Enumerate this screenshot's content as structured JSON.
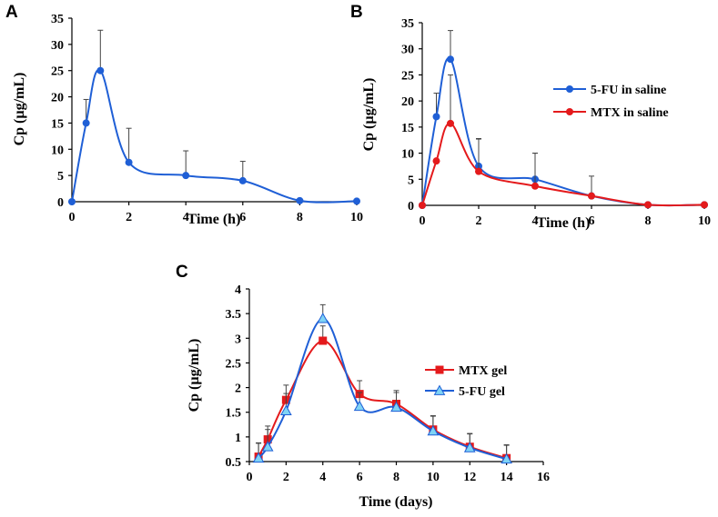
{
  "chart_data": [
    {
      "panel": "A",
      "type": "line",
      "xlabel": "Time (h)",
      "ylabel": "Cp (µg/mL)",
      "xlim": [
        0,
        10
      ],
      "ylim": [
        0,
        35
      ],
      "xticks": [
        0,
        2,
        4,
        6,
        8,
        10
      ],
      "yticks": [
        0,
        5,
        10,
        15,
        20,
        25,
        30,
        35
      ],
      "series": [
        {
          "name": "5-FU",
          "color": "#1f5fd6",
          "marker": "circle",
          "x": [
            0,
            0.5,
            1,
            2,
            4,
            6,
            8,
            10
          ],
          "y": [
            0,
            15,
            25,
            7.5,
            5,
            4,
            0.2,
            0.1
          ],
          "err": [
            0,
            4.5,
            7.7,
            6.5,
            4.7,
            3.7,
            0,
            0
          ]
        }
      ]
    },
    {
      "panel": "B",
      "type": "line",
      "xlabel": "Time (h)",
      "ylabel": "Cp (µg/mL)",
      "xlim": [
        0,
        10
      ],
      "ylim": [
        0,
        35
      ],
      "xticks": [
        0,
        2,
        4,
        6,
        8,
        10
      ],
      "yticks": [
        0,
        5,
        10,
        15,
        20,
        25,
        30,
        35
      ],
      "legend": [
        "5-FU in saline",
        "MTX in saline"
      ],
      "series": [
        {
          "name": "5-FU in saline",
          "color": "#1f5fd6",
          "marker": "circle",
          "x": [
            0,
            0.5,
            1,
            2,
            4,
            6,
            8,
            10
          ],
          "y": [
            0,
            17,
            28,
            7.5,
            5,
            1.8,
            0.1,
            0.1
          ],
          "err": [
            0,
            4.5,
            5.5,
            5.3,
            5,
            3.8,
            0,
            0
          ]
        },
        {
          "name": "MTX in saline",
          "color": "#e41a1c",
          "marker": "circle",
          "x": [
            0,
            0.5,
            1,
            2,
            4,
            6,
            8,
            10
          ],
          "y": [
            0,
            8.5,
            15.7,
            6.5,
            3.7,
            1.8,
            0.1,
            0.1
          ],
          "err": [
            0,
            0,
            9.3,
            6.2,
            6.3,
            0,
            0,
            0
          ]
        }
      ]
    },
    {
      "panel": "C",
      "type": "line",
      "xlabel": "Time (days)",
      "ylabel": "Cp (µg/mL)",
      "xlim": [
        0,
        16
      ],
      "ylim": [
        0.5,
        4
      ],
      "xticks": [
        0,
        2,
        4,
        6,
        8,
        10,
        12,
        14,
        16
      ],
      "yticks": [
        0.5,
        1,
        1.5,
        2,
        2.5,
        3,
        3.5,
        4
      ],
      "legend": [
        "MTX gel",
        "5-FU gel"
      ],
      "series": [
        {
          "name": "MTX gel",
          "color": "#e41a1c",
          "marker": "square",
          "x": [
            0.5,
            1,
            2,
            4,
            6,
            8,
            10,
            12,
            14
          ],
          "y": [
            0.6,
            0.95,
            1.75,
            2.95,
            1.87,
            1.67,
            1.15,
            0.8,
            0.57
          ],
          "err": [
            0.28,
            0.27,
            0.3,
            0.3,
            0.27,
            0.27,
            0.28,
            0.27,
            0.27
          ]
        },
        {
          "name": "5-FU gel",
          "color": "#1f5fd6",
          "marker": "triangle",
          "x": [
            0.5,
            1,
            2,
            4,
            6,
            8,
            10,
            12,
            14
          ],
          "y": [
            0.57,
            0.8,
            1.53,
            3.4,
            1.62,
            1.6,
            1.12,
            0.78,
            0.55
          ],
          "err": [
            0.3,
            0.35,
            0.35,
            0.28,
            0.28,
            0.3,
            0.3,
            0.28,
            0.28
          ]
        }
      ]
    }
  ]
}
